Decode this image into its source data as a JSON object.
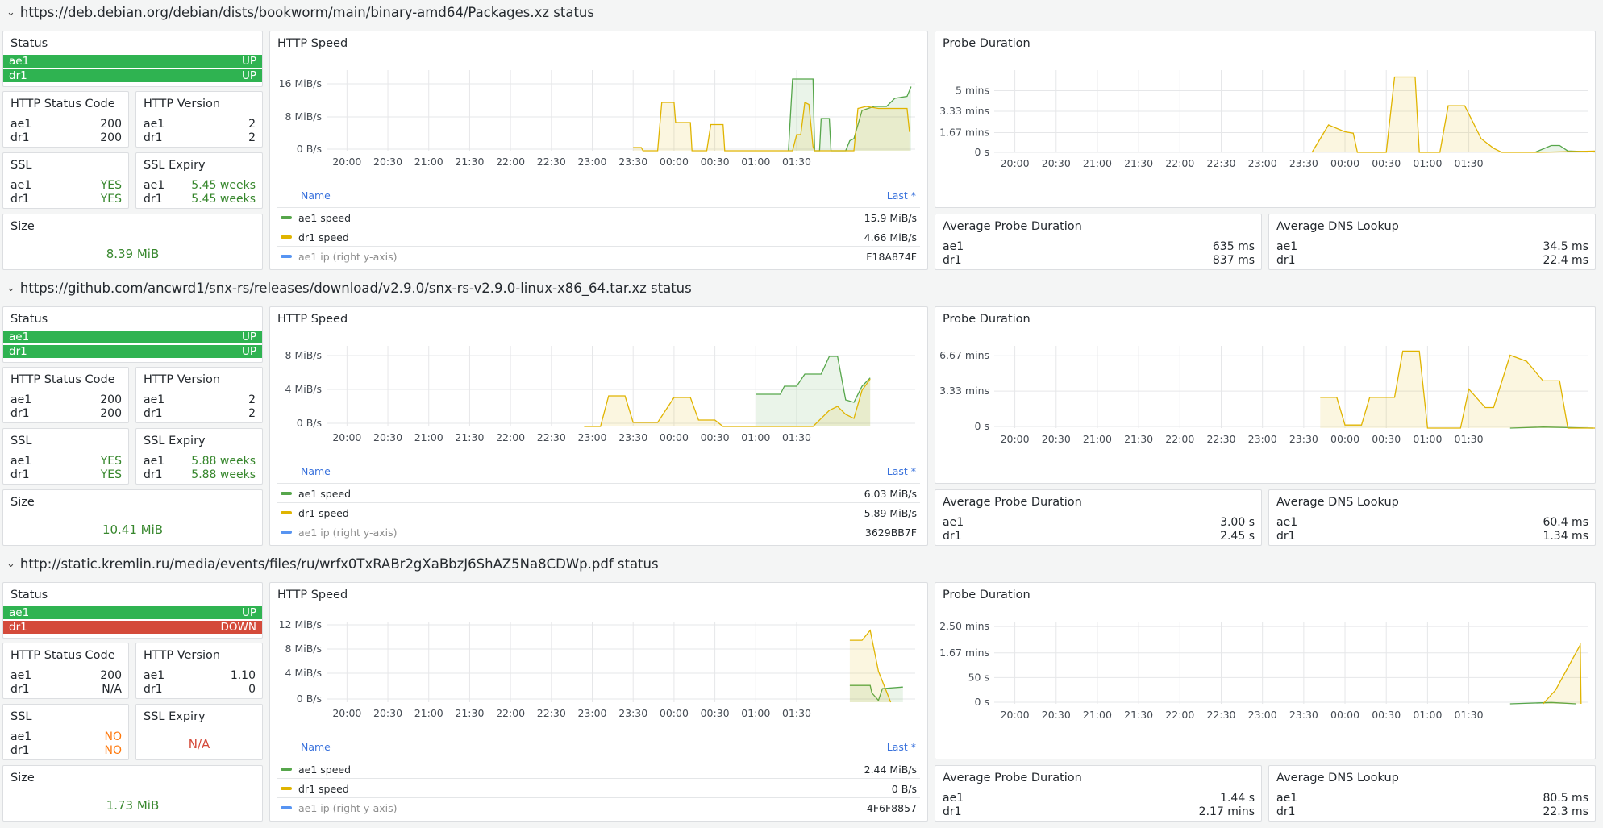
{
  "colors": {
    "green": "#73bf69",
    "green_line": "#56a64b",
    "yellow": "#e0b400",
    "blue": "#5794f2",
    "up": "#2fb351",
    "down": "#d44a3a",
    "ok_text": "#37872d",
    "warn_text": "#ff780a",
    "link": "#3871dc"
  },
  "labels": {
    "status": "Status",
    "http_status_code": "HTTP Status Code",
    "http_version": "HTTP Version",
    "ssl": "SSL",
    "ssl_expiry": "SSL Expiry",
    "size": "Size",
    "http_speed": "HTTP Speed",
    "probe_duration": "Probe Duration",
    "avg_probe": "Average Probe Duration",
    "avg_dns": "Average DNS Lookup",
    "legend_name": "Name",
    "legend_last": "Last *",
    "ae1": "ae1",
    "dr1": "dr1",
    "ae1_speed": "ae1 speed",
    "dr1_speed": "dr1 speed",
    "ae1_ip": "ae1 ip (right y-axis)"
  },
  "time_ticks": [
    "20:00",
    "20:30",
    "21:00",
    "21:30",
    "22:00",
    "22:30",
    "23:00",
    "23:30",
    "00:00",
    "00:30",
    "01:00",
    "01:30"
  ],
  "rows": [
    {
      "header": "https://deb.debian.org/debian/dists/bookworm/main/binary-amd64/Packages.xz status",
      "status": [
        {
          "name": "ae1",
          "state": "UP"
        },
        {
          "name": "dr1",
          "state": "UP"
        }
      ],
      "http_status_code": {
        "ae1": "200",
        "dr1": "200"
      },
      "http_version": {
        "ae1": "2",
        "dr1": "2"
      },
      "ssl": {
        "ae1": "YES",
        "dr1": "YES"
      },
      "ssl_expiry": {
        "ae1": "5.45 weeks",
        "dr1": "5.45 weeks",
        "single": ""
      },
      "size": "8.39 MiB",
      "speed_yticks": [
        "16 MiB/s",
        "8 MiB/s",
        "0 B/s"
      ],
      "legend": {
        "ae1_speed": "15.9 MiB/s",
        "dr1_speed": "4.66 MiB/s",
        "ae1_ip": "F18A874F"
      },
      "probe_yticks": [
        "5 mins",
        "3.33 mins",
        "1.67 mins",
        "0 s"
      ],
      "avg_probe": {
        "ae1": "635 ms",
        "dr1": "837 ms"
      },
      "avg_dns": {
        "ae1": "34.5 ms",
        "dr1": "22.4 ms"
      }
    },
    {
      "header": "https://github.com/ancwrd1/snx-rs/releases/download/v2.9.0/snx-rs-v2.9.0-linux-x86_64.tar.xz status",
      "status": [
        {
          "name": "ae1",
          "state": "UP"
        },
        {
          "name": "dr1",
          "state": "UP"
        }
      ],
      "http_status_code": {
        "ae1": "200",
        "dr1": "200"
      },
      "http_version": {
        "ae1": "2",
        "dr1": "2"
      },
      "ssl": {
        "ae1": "YES",
        "dr1": "YES"
      },
      "ssl_expiry": {
        "ae1": "5.88 weeks",
        "dr1": "5.88 weeks",
        "single": ""
      },
      "size": "10.41 MiB",
      "speed_yticks": [
        "8 MiB/s",
        "4 MiB/s",
        "0 B/s"
      ],
      "legend": {
        "ae1_speed": "6.03 MiB/s",
        "dr1_speed": "5.89 MiB/s",
        "ae1_ip": "3629BB7F"
      },
      "probe_yticks": [
        "6.67 mins",
        "3.33 mins",
        "0 s"
      ],
      "avg_probe": {
        "ae1": "3.00 s",
        "dr1": "2.45 s"
      },
      "avg_dns": {
        "ae1": "60.4 ms",
        "dr1": "1.34 ms"
      }
    },
    {
      "header": "http://static.kremlin.ru/media/events/files/ru/wrfx0TxRABr2gXaBbzJ6ShAZ5Na8CDWp.pdf status",
      "status": [
        {
          "name": "ae1",
          "state": "UP"
        },
        {
          "name": "dr1",
          "state": "DOWN"
        }
      ],
      "http_status_code": {
        "ae1": "200",
        "dr1": "N/A"
      },
      "http_version": {
        "ae1": "1.10",
        "dr1": "0"
      },
      "ssl": {
        "ae1": "NO",
        "dr1": "NO"
      },
      "ssl_expiry": {
        "ae1": "",
        "dr1": "",
        "single": "N/A"
      },
      "size": "1.73 MiB",
      "speed_yticks": [
        "12 MiB/s",
        "8 MiB/s",
        "4 MiB/s",
        "0 B/s"
      ],
      "legend": {
        "ae1_speed": "2.44 MiB/s",
        "dr1_speed": "0 B/s",
        "ae1_ip": "4F6F8857"
      },
      "probe_yticks": [
        "2.50 mins",
        "1.67 mins",
        "50 s",
        "0 s"
      ],
      "avg_probe": {
        "ae1": "1.44 s",
        "dr1": "2.17 mins"
      },
      "avg_dns": {
        "ae1": "80.5 ms",
        "dr1": "22.3 ms"
      }
    }
  ],
  "chart_data": [
    {
      "type": "line",
      "title": "HTTP Speed",
      "row": 0,
      "ylabel": "",
      "ylim": [
        0,
        20
      ],
      "x_hours": true,
      "series": [
        {
          "name": "ae1 speed",
          "color": "#56a64b",
          "points": [
            [
              25.4,
              0
            ],
            [
              25.45,
              17.8
            ],
            [
              25.7,
              17.8
            ],
            [
              25.72,
              0
            ],
            [
              25.78,
              0
            ],
            [
              25.8,
              8
            ],
            [
              25.9,
              8
            ],
            [
              25.92,
              0
            ],
            [
              26.1,
              0
            ],
            [
              26.15,
              2.5
            ],
            [
              26.2,
              3
            ],
            [
              26.3,
              10
            ],
            [
              26.45,
              11
            ],
            [
              26.6,
              11
            ],
            [
              26.7,
              13
            ],
            [
              26.85,
              13.5
            ],
            [
              26.9,
              15.9
            ]
          ]
        },
        {
          "name": "dr1 speed",
          "color": "#e0b400",
          "points": [
            [
              23.5,
              0.8
            ],
            [
              23.6,
              0.8
            ],
            [
              23.62,
              0
            ],
            [
              23.8,
              0
            ],
            [
              23.85,
              12
            ],
            [
              24.0,
              12
            ],
            [
              24.02,
              7
            ],
            [
              24.2,
              7
            ],
            [
              24.22,
              0
            ],
            [
              24.4,
              0
            ],
            [
              24.45,
              6.5
            ],
            [
              24.6,
              6.5
            ],
            [
              24.62,
              0
            ],
            [
              25.45,
              0
            ],
            [
              25.5,
              4
            ],
            [
              25.55,
              4
            ],
            [
              25.6,
              12
            ],
            [
              25.65,
              11.5
            ],
            [
              25.7,
              1
            ],
            [
              25.72,
              0
            ],
            [
              26.2,
              0
            ],
            [
              26.25,
              10.5
            ],
            [
              26.35,
              11
            ],
            [
              26.5,
              10.5
            ],
            [
              26.85,
              10.5
            ],
            [
              26.88,
              4.66
            ]
          ]
        }
      ]
    },
    {
      "type": "line",
      "title": "Probe Duration",
      "row": 0,
      "ylabel": "",
      "ylim": [
        0,
        6
      ],
      "x_hours": true,
      "series": [
        {
          "name": "ae1",
          "color": "#56a64b",
          "points": [
            [
              26.3,
              0
            ],
            [
              26.5,
              0.5
            ],
            [
              26.6,
              0.5
            ],
            [
              26.7,
              0.1
            ],
            [
              27.2,
              0
            ]
          ]
        },
        {
          "name": "dr1",
          "color": "#e0b400",
          "points": [
            [
              23.6,
              0
            ],
            [
              23.8,
              2
            ],
            [
              24.0,
              1.5
            ],
            [
              24.1,
              1.4
            ],
            [
              24.15,
              0
            ],
            [
              24.5,
              0
            ],
            [
              24.6,
              5.5
            ],
            [
              24.85,
              5.5
            ],
            [
              24.9,
              0
            ],
            [
              25.15,
              0
            ],
            [
              25.25,
              3.4
            ],
            [
              25.45,
              3.4
            ],
            [
              25.65,
              1
            ],
            [
              25.8,
              0.3
            ],
            [
              25.9,
              0
            ],
            [
              26.3,
              0
            ],
            [
              27.1,
              0.1
            ],
            [
              27.2,
              0
            ]
          ]
        }
      ]
    },
    {
      "type": "line",
      "title": "HTTP Speed",
      "row": 1,
      "ylabel": "",
      "ylim": [
        0,
        10
      ],
      "x_hours": true,
      "series": [
        {
          "name": "ae1 speed",
          "color": "#56a64b",
          "points": [
            [
              25.0,
              4
            ],
            [
              25.3,
              4
            ],
            [
              25.35,
              5
            ],
            [
              25.5,
              5
            ],
            [
              25.6,
              6.5
            ],
            [
              25.8,
              6.5
            ],
            [
              25.9,
              8.7
            ],
            [
              26.0,
              8.7
            ],
            [
              26.1,
              3.3
            ],
            [
              26.2,
              3
            ],
            [
              26.3,
              5
            ],
            [
              26.4,
              6.03
            ]
          ]
        },
        {
          "name": "dr1 speed",
          "color": "#e0b400",
          "points": [
            [
              22.9,
              0
            ],
            [
              23.1,
              0
            ],
            [
              23.2,
              3.8
            ],
            [
              23.4,
              3.8
            ],
            [
              23.5,
              0.5
            ],
            [
              23.8,
              0.5
            ],
            [
              24.0,
              3.6
            ],
            [
              24.2,
              3.6
            ],
            [
              24.3,
              0.8
            ],
            [
              24.5,
              0.8
            ],
            [
              24.6,
              0
            ],
            [
              25.5,
              0
            ],
            [
              25.7,
              0
            ],
            [
              25.9,
              2
            ],
            [
              26.0,
              2.5
            ],
            [
              26.1,
              1.5
            ],
            [
              26.2,
              1
            ],
            [
              26.3,
              4.5
            ],
            [
              26.4,
              5.89
            ]
          ]
        }
      ]
    },
    {
      "type": "line",
      "title": "Probe Duration",
      "row": 1,
      "ylabel": "",
      "ylim": [
        0,
        8
      ],
      "x_hours": true,
      "series": [
        {
          "name": "ae1",
          "color": "#56a64b",
          "points": [
            [
              26.0,
              0
            ],
            [
              26.4,
              0.1
            ],
            [
              27.0,
              0
            ]
          ]
        },
        {
          "name": "dr1",
          "color": "#e0b400",
          "points": [
            [
              23.7,
              3
            ],
            [
              23.9,
              3
            ],
            [
              24.0,
              0.3
            ],
            [
              24.2,
              0.3
            ],
            [
              24.3,
              3
            ],
            [
              24.6,
              3
            ],
            [
              24.7,
              7.5
            ],
            [
              24.9,
              7.5
            ],
            [
              25.0,
              0
            ],
            [
              25.4,
              0
            ],
            [
              25.5,
              3.8
            ],
            [
              25.7,
              2
            ],
            [
              25.8,
              2
            ],
            [
              26.0,
              7.1
            ],
            [
              26.2,
              6.5
            ],
            [
              26.4,
              4.6
            ],
            [
              26.6,
              4.6
            ],
            [
              26.7,
              0
            ],
            [
              27.2,
              0
            ]
          ]
        }
      ]
    },
    {
      "type": "line",
      "title": "HTTP Speed",
      "row": 2,
      "ylabel": "",
      "ylim": [
        0,
        13
      ],
      "x_hours": true,
      "series": [
        {
          "name": "ae1 speed",
          "color": "#56a64b",
          "points": [
            [
              26.15,
              2.7
            ],
            [
              26.4,
              2.7
            ],
            [
              26.42,
              1.5
            ],
            [
              26.5,
              0.3
            ],
            [
              26.55,
              2.2
            ],
            [
              26.8,
              2.44
            ]
          ]
        },
        {
          "name": "dr1 speed",
          "color": "#e0b400",
          "points": [
            [
              26.15,
              10
            ],
            [
              26.3,
              10
            ],
            [
              26.4,
              11.6
            ],
            [
              26.5,
              5
            ],
            [
              26.65,
              0
            ]
          ]
        }
      ]
    },
    {
      "type": "line",
      "title": "Probe Duration",
      "row": 2,
      "ylabel": "",
      "ylim": [
        0,
        3
      ],
      "x_hours": true,
      "series": [
        {
          "name": "ae1",
          "color": "#56a64b",
          "points": [
            [
              26.0,
              0
            ],
            [
              26.5,
              0.05
            ],
            [
              26.8,
              0
            ]
          ]
        },
        {
          "name": "dr1",
          "color": "#e0b400",
          "points": [
            [
              26.4,
              0
            ],
            [
              26.55,
              0.5
            ],
            [
              26.85,
              2.15
            ],
            [
              26.86,
              0
            ]
          ]
        }
      ]
    }
  ]
}
